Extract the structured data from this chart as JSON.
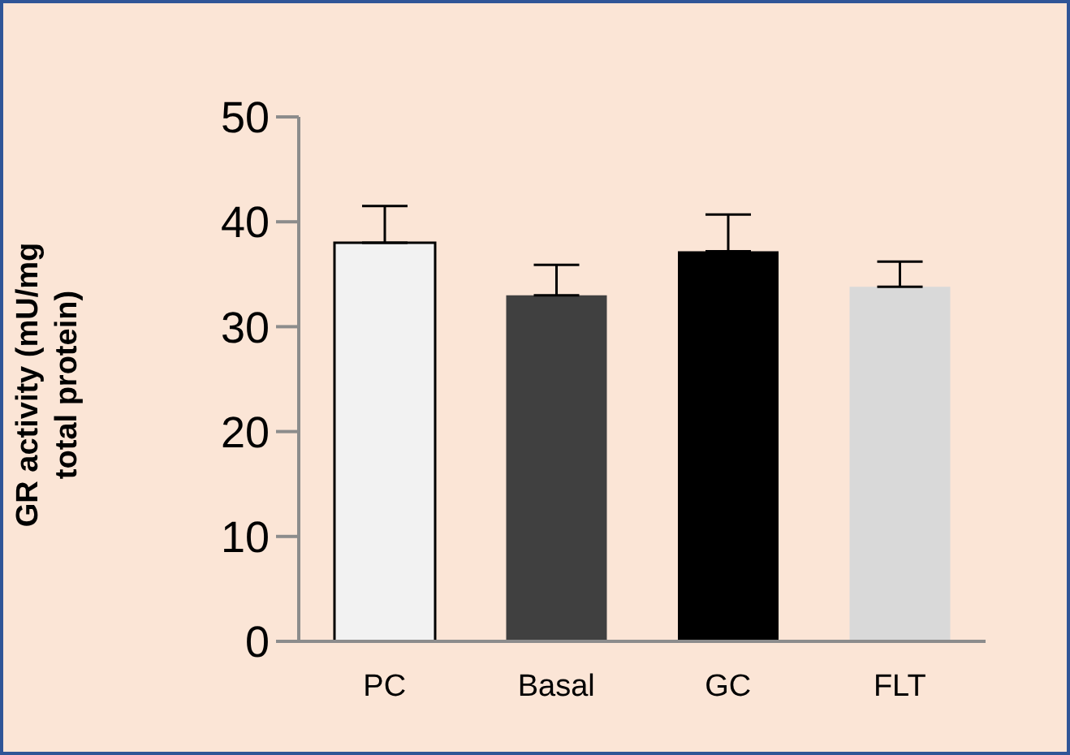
{
  "chart_data": {
    "type": "bar",
    "ylabel": "GR activity (mU/mg total protein)",
    "categories": [
      "PC",
      "Basal",
      "GC",
      "FLT"
    ],
    "values": [
      38,
      33,
      37.2,
      33.8
    ],
    "colors": [
      "#f2f2f2",
      "#404040",
      "#000000",
      "#d9d9d9"
    ],
    "errors": [
      [
        38,
        41.5
      ],
      [
        33,
        35.9
      ],
      [
        37.2,
        40.7
      ],
      [
        33.8,
        36.2
      ]
    ],
    "ylim": [
      0,
      50
    ],
    "yticks": [
      0,
      10,
      20,
      30,
      40,
      50
    ],
    "grid": false,
    "legend": false
  }
}
